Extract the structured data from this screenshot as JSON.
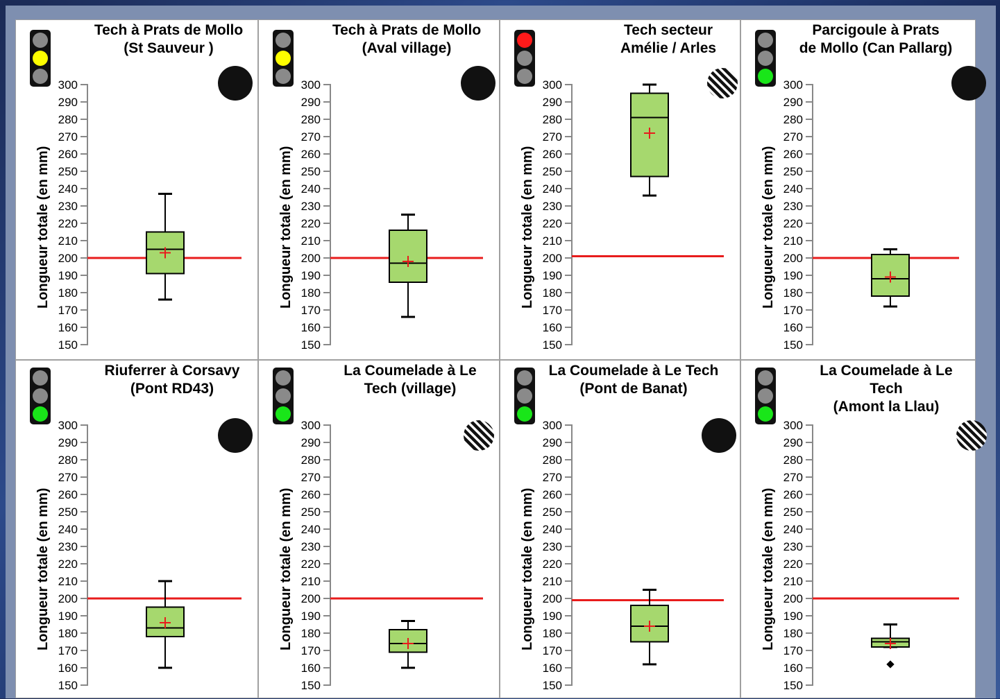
{
  "chart_data": [
    {
      "type": "box",
      "title": "Tech à Prats de Mollo\n(St Sauveur )",
      "ylabel": "Longueur totale (en mm)",
      "ylim": [
        150,
        300
      ],
      "yticks": [
        150,
        160,
        170,
        180,
        190,
        200,
        210,
        220,
        230,
        240,
        250,
        260,
        270,
        280,
        290,
        300
      ],
      "min": 176,
      "q1": 191,
      "median": 205,
      "q3": 215,
      "max": 237,
      "mean": 203,
      "outliers": [],
      "reference_line": 200,
      "traffic_light": "yellow",
      "marker": "solid"
    },
    {
      "type": "box",
      "title": "Tech  à Prats de Mollo\n(Aval village)",
      "ylabel": "Longueur totale (en mm)",
      "ylim": [
        150,
        300
      ],
      "yticks": [
        150,
        160,
        170,
        180,
        190,
        200,
        210,
        220,
        230,
        240,
        250,
        260,
        270,
        280,
        290,
        300
      ],
      "min": 166,
      "q1": 186,
      "median": 197,
      "q3": 216,
      "max": 225,
      "mean": 198,
      "outliers": [],
      "reference_line": 200,
      "traffic_light": "yellow",
      "marker": "solid"
    },
    {
      "type": "box",
      "title": "Tech secteur\nAmélie / Arles",
      "ylabel": "Longueur totale (en mm)",
      "ylim": [
        150,
        300
      ],
      "yticks": [
        150,
        160,
        170,
        180,
        190,
        200,
        210,
        220,
        230,
        240,
        250,
        260,
        270,
        280,
        290,
        300
      ],
      "min": 236,
      "q1": 247,
      "median": 281,
      "q3": 295,
      "max": 300,
      "mean": 272,
      "outliers": [],
      "reference_line": 201,
      "traffic_light": "red",
      "marker": "hatched"
    },
    {
      "type": "box",
      "title": "Parcigoule à Prats\nde Mollo (Can Pallarg)",
      "ylabel": "Longueur totale (en mm)",
      "ylim": [
        150,
        300
      ],
      "yticks": [
        150,
        160,
        170,
        180,
        190,
        200,
        210,
        220,
        230,
        240,
        250,
        260,
        270,
        280,
        290,
        300
      ],
      "min": 172,
      "q1": 178,
      "median": 188,
      "q3": 202,
      "max": 205,
      "mean": 189,
      "outliers": [],
      "reference_line": 200,
      "traffic_light": "green",
      "marker": "solid"
    },
    {
      "type": "box",
      "title": "Riuferrer à Corsavy\n(Pont RD43)",
      "ylabel": "Longueur totale (en mm)",
      "ylim": [
        150,
        300
      ],
      "yticks": [
        150,
        160,
        170,
        180,
        190,
        200,
        210,
        220,
        230,
        240,
        250,
        260,
        270,
        280,
        290,
        300
      ],
      "min": 160,
      "q1": 178,
      "median": 183,
      "q3": 195,
      "max": 210,
      "mean": 186,
      "outliers": [],
      "reference_line": 200,
      "traffic_light": "green",
      "marker": "solid"
    },
    {
      "type": "box",
      "title": "La Coumelade à Le\nTech (village)",
      "ylabel": "Longueur totale (en mm)",
      "ylim": [
        150,
        300
      ],
      "yticks": [
        150,
        160,
        170,
        180,
        190,
        200,
        210,
        220,
        230,
        240,
        250,
        260,
        270,
        280,
        290,
        300
      ],
      "min": 160,
      "q1": 169,
      "median": 174,
      "q3": 182,
      "max": 187,
      "mean": 174,
      "outliers": [],
      "reference_line": 200,
      "traffic_light": "green",
      "marker": "hatched"
    },
    {
      "type": "box",
      "title": "La Coumelade à Le Tech\n(Pont de Banat)",
      "ylabel": "Longueur totale (en mm)",
      "ylim": [
        150,
        300
      ],
      "yticks": [
        150,
        160,
        170,
        180,
        190,
        200,
        210,
        220,
        230,
        240,
        250,
        260,
        270,
        280,
        290,
        300
      ],
      "min": 162,
      "q1": 175,
      "median": 184,
      "q3": 196,
      "max": 205,
      "mean": 184,
      "outliers": [],
      "reference_line": 199,
      "traffic_light": "green",
      "marker": "solid"
    },
    {
      "type": "box",
      "title": "La Coumelade à Le\nTech\n(Amont la Llau)",
      "ylabel": "Longueur totale (en mm)",
      "ylim": [
        150,
        300
      ],
      "yticks": [
        150,
        160,
        170,
        180,
        190,
        200,
        210,
        220,
        230,
        240,
        250,
        260,
        270,
        280,
        290,
        300
      ],
      "min": 172,
      "q1": 172,
      "median": 175,
      "q3": 177,
      "max": 185,
      "mean": 174,
      "outliers": [
        162
      ],
      "reference_line": 200,
      "traffic_light": "green",
      "marker": "hatched"
    }
  ],
  "colors": {
    "box_fill": "#a6d86e",
    "reference_line": "#e81c1c",
    "mean_marker": "#e81c1c",
    "axis": "#888888",
    "lamp_off": "#8a8a8a",
    "red": "#ff1a1a",
    "yellow": "#ffff00",
    "green": "#19e619",
    "marker": "#111111"
  }
}
